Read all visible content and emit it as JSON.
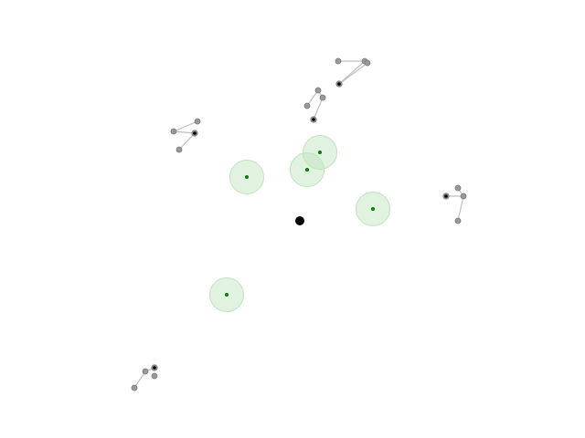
{
  "colors": {
    "background": "#ffffff",
    "player": "#000000",
    "zone_fill": "#bde3bd",
    "zone_dot": "#008000",
    "enemy_node_fill": "#999999",
    "enemy_node_stroke": "#777777",
    "enemy_head_fill": "#000000",
    "link_stroke": "#bfbfbf"
  },
  "scene": {
    "entities": [
      {
        "kind": "player",
        "icon": "player-dot-icon"
      },
      {
        "kind": "target-zone",
        "count": 5,
        "icon": "green-target-zone-icon"
      },
      {
        "kind": "linked-enemy-cluster",
        "count": 5,
        "icon": "gray-node-cluster-icon"
      }
    ]
  }
}
